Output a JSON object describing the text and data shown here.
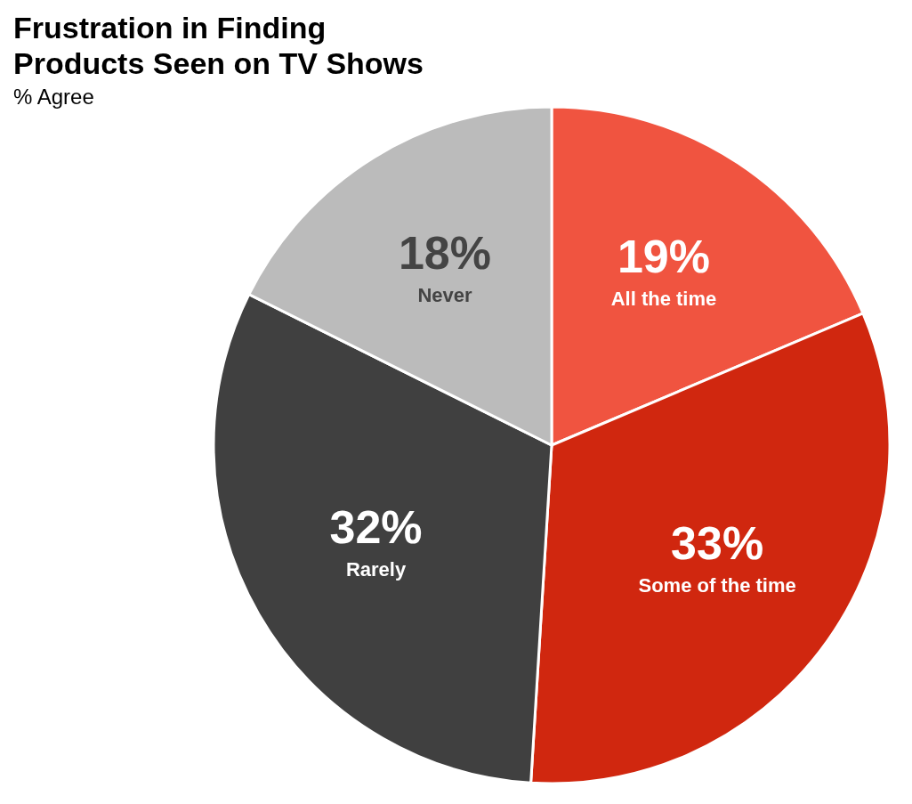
{
  "chart_data": {
    "type": "pie",
    "title": "Frustration in Finding Products Seen on TV Shows",
    "subtitle": "% Agree",
    "categories": [
      "All the time",
      "Some of the time",
      "Rarely",
      "Never"
    ],
    "values": [
      19,
      33,
      32,
      18
    ],
    "value_labels": [
      "19%",
      "33%",
      "32%",
      "18%"
    ],
    "colors": [
      "#f05440",
      "#d0270f",
      "#404040",
      "#bbbbbb"
    ],
    "legend": false
  }
}
